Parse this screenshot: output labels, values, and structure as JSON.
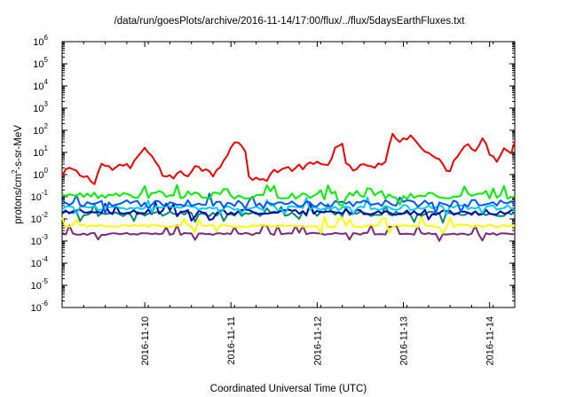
{
  "chart_data": {
    "type": "line",
    "title": "/data/run/goesPlots/archive/2016-11-14/17:00/flux/../flux/5daysEarthFluxes.txt",
    "xlabel": "Coordinated Universal Time (UTC)",
    "ylabel": {
      "base": "protons/cm",
      "sup": "2",
      "rest": "-s-sr-MeV"
    },
    "yscale": "log",
    "ylim": [
      "1e-6",
      "1e6"
    ],
    "y_ticks": [
      {
        "value": "1e-6",
        "base": "10",
        "exp": "-6"
      },
      {
        "value": "1e-5",
        "base": "10",
        "exp": "-5"
      },
      {
        "value": "1e-4",
        "base": "10",
        "exp": "-4"
      },
      {
        "value": "1e-3",
        "base": "10",
        "exp": "-3"
      },
      {
        "value": "1e-2",
        "base": "10",
        "exp": "-2"
      },
      {
        "value": "1e-1",
        "base": "10",
        "exp": "-1"
      },
      {
        "value": "1e0",
        "base": "10",
        "exp": "0"
      },
      {
        "value": "1e1",
        "base": "10",
        "exp": "1"
      },
      {
        "value": "1e2",
        "base": "10",
        "exp": "2"
      },
      {
        "value": "1e3",
        "base": "10",
        "exp": "3"
      },
      {
        "value": "1e4",
        "base": "10",
        "exp": "4"
      },
      {
        "value": "1e5",
        "base": "10",
        "exp": "5"
      },
      {
        "value": "1e6",
        "base": "10",
        "exp": "6"
      }
    ],
    "xlim": [
      "2016-11-09T01:00",
      "2016-11-14T07:00"
    ],
    "x_ticks": [
      "2016-11-10",
      "2016-11-11",
      "2016-11-12",
      "2016-11-13",
      "2016-11-14"
    ],
    "grid": false,
    "legend": "none",
    "series": [
      {
        "color": "#ee0000",
        "base": "2.0",
        "jitter": 0.28,
        "points": [
          [
            "2016-11-09T01:00",
            "0.8"
          ],
          [
            "2016-11-09T03:00",
            "2"
          ],
          [
            "2016-11-09T05:00",
            "1.2"
          ],
          [
            "2016-11-09T08:00",
            "0.7"
          ],
          [
            "2016-11-09T10:00",
            "0.5"
          ],
          [
            "2016-11-09T12:00",
            "3"
          ],
          [
            "2016-11-09T15:00",
            "1.8"
          ],
          [
            "2016-11-09T18:00",
            "2.5"
          ],
          [
            "2016-11-09T20:00",
            "2"
          ],
          [
            "2016-11-09T22:00",
            "7"
          ],
          [
            "2016-11-10T00:00",
            "12"
          ],
          [
            "2016-11-10T02:00",
            "9"
          ],
          [
            "2016-11-10T04:00",
            "2"
          ],
          [
            "2016-11-10T05:00",
            "1"
          ],
          [
            "2016-11-10T07:00",
            "0.7"
          ],
          [
            "2016-11-10T10:00",
            "1.2"
          ],
          [
            "2016-11-10T12:00",
            "0.9"
          ],
          [
            "2016-11-10T14:00",
            "3"
          ],
          [
            "2016-11-10T17:00",
            "1.5"
          ],
          [
            "2016-11-10T19:00",
            "1"
          ],
          [
            "2016-11-10T22:00",
            "5"
          ],
          [
            "2016-11-11T01:00",
            "35"
          ],
          [
            "2016-11-11T03:00",
            "20"
          ],
          [
            "2016-11-11T04:00",
            "8"
          ],
          [
            "2016-11-11T05:00",
            "0.9"
          ],
          [
            "2016-11-11T08:00",
            "0.5"
          ],
          [
            "2016-11-11T10:00",
            "0.7"
          ],
          [
            "2016-11-11T12:00",
            "1.5"
          ],
          [
            "2016-11-11T16:00",
            "1.8"
          ],
          [
            "2016-11-11T20:00",
            "2.2"
          ],
          [
            "2016-11-11T23:00",
            "3"
          ],
          [
            "2016-11-12T03:00",
            "2.5"
          ],
          [
            "2016-11-12T05:00",
            "20"
          ],
          [
            "2016-11-12T07:00",
            "20"
          ],
          [
            "2016-11-12T08:00",
            "2.5"
          ],
          [
            "2016-11-12T10:00",
            "1.5"
          ],
          [
            "2016-11-12T12:00",
            "3"
          ],
          [
            "2016-11-12T14:00",
            "2"
          ],
          [
            "2016-11-12T17:00",
            "2.5"
          ],
          [
            "2016-11-12T19:00",
            "3"
          ],
          [
            "2016-11-12T21:00",
            "70"
          ],
          [
            "2016-11-12T23:00",
            "40"
          ],
          [
            "2016-11-13T02:00",
            "50"
          ],
          [
            "2016-11-13T05:00",
            "20"
          ],
          [
            "2016-11-13T08:00",
            "8"
          ],
          [
            "2016-11-13T11:00",
            "2.5"
          ],
          [
            "2016-11-13T13:00",
            "1.5"
          ],
          [
            "2016-11-13T15:00",
            "8"
          ],
          [
            "2016-11-13T17:00",
            "25"
          ],
          [
            "2016-11-13T20:00",
            "15"
          ],
          [
            "2016-11-13T22:00",
            "40"
          ],
          [
            "2016-11-14T00:00",
            "10"
          ],
          [
            "2016-11-14T02:00",
            "5"
          ],
          [
            "2016-11-14T04:00",
            "15"
          ],
          [
            "2016-11-14T06:00",
            "10"
          ],
          [
            "2016-11-14T07:00",
            "30"
          ]
        ]
      },
      {
        "color": "#00ee00",
        "base": "0.11",
        "jitter": 0.32,
        "points": []
      },
      {
        "color": "#0055ff",
        "base": "0.05",
        "jitter": 0.3,
        "points": []
      },
      {
        "color": "#00ccff",
        "base": "0.032",
        "jitter": 0.24,
        "points": []
      },
      {
        "color": "#0000aa",
        "base": "0.02",
        "jitter": 0.25,
        "points": []
      },
      {
        "color": "#008866",
        "base": "0.017",
        "jitter": 0.22,
        "points": []
      },
      {
        "color": "#ffff00",
        "base": "0.0048",
        "jitter": 0.12,
        "points": []
      },
      {
        "color": "#7a2a7a",
        "base": "0.0021",
        "jitter": 0.1,
        "points": []
      }
    ]
  }
}
